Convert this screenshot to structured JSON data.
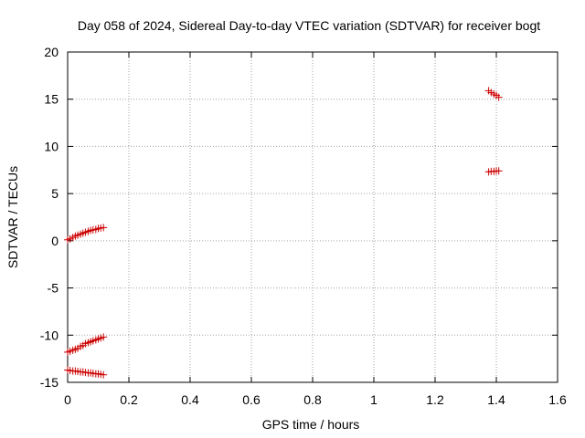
{
  "chart_data": {
    "type": "scatter",
    "title": "Day 058 of 2024, Sidereal Day-to-day VTEC variation (SDTVAR) for receiver bogt",
    "xlabel": "GPS time / hours",
    "ylabel": "SDTVAR / TECUs",
    "xlim": [
      0,
      1.6
    ],
    "ylim": [
      -15,
      20
    ],
    "xticks": [
      "0",
      "0.2",
      "0.4",
      "0.6",
      "0.8",
      "1",
      "1.2",
      "1.4",
      "1.6"
    ],
    "yticks": [
      "-15",
      "-10",
      "-5",
      "0",
      "5",
      "10",
      "15",
      "20"
    ],
    "grid": true,
    "marker": "+",
    "color": "#cc0000",
    "series": [
      {
        "x": [
          0.0,
          0.008,
          0.017,
          0.025,
          0.033,
          0.042,
          0.05,
          0.058,
          0.067,
          0.075,
          0.083,
          0.092,
          0.1,
          0.108,
          0.117
        ],
        "y": [
          0.1,
          0.2,
          0.35,
          0.5,
          0.6,
          0.7,
          0.8,
          0.9,
          1.0,
          1.1,
          1.15,
          1.2,
          1.3,
          1.35,
          1.4
        ]
      },
      {
        "x": [
          0.0,
          0.008,
          0.017,
          0.025,
          0.033,
          0.042,
          0.05,
          0.058,
          0.067,
          0.075,
          0.083,
          0.092,
          0.1,
          0.108,
          0.117
        ],
        "y": [
          -11.8,
          -11.7,
          -11.6,
          -11.5,
          -11.4,
          -11.2,
          -11.1,
          -10.9,
          -10.8,
          -10.7,
          -10.6,
          -10.5,
          -10.4,
          -10.3,
          -10.2
        ]
      },
      {
        "x": [
          0.0,
          0.008,
          0.017,
          0.025,
          0.033,
          0.042,
          0.05,
          0.058,
          0.067,
          0.075,
          0.083,
          0.092,
          0.1,
          0.108,
          0.117
        ],
        "y": [
          -13.7,
          -13.75,
          -13.8,
          -13.8,
          -13.85,
          -13.9,
          -13.9,
          -13.95,
          -14.0,
          -14.0,
          -14.05,
          -14.1,
          -14.1,
          -14.15,
          -14.2
        ]
      },
      {
        "x": [
          1.375,
          1.383,
          1.392,
          1.4,
          1.408
        ],
        "y": [
          15.9,
          15.7,
          15.55,
          15.4,
          15.2
        ]
      },
      {
        "x": [
          1.375,
          1.383,
          1.392,
          1.4,
          1.408
        ],
        "y": [
          7.3,
          7.35,
          7.35,
          7.4,
          7.4
        ]
      }
    ]
  }
}
